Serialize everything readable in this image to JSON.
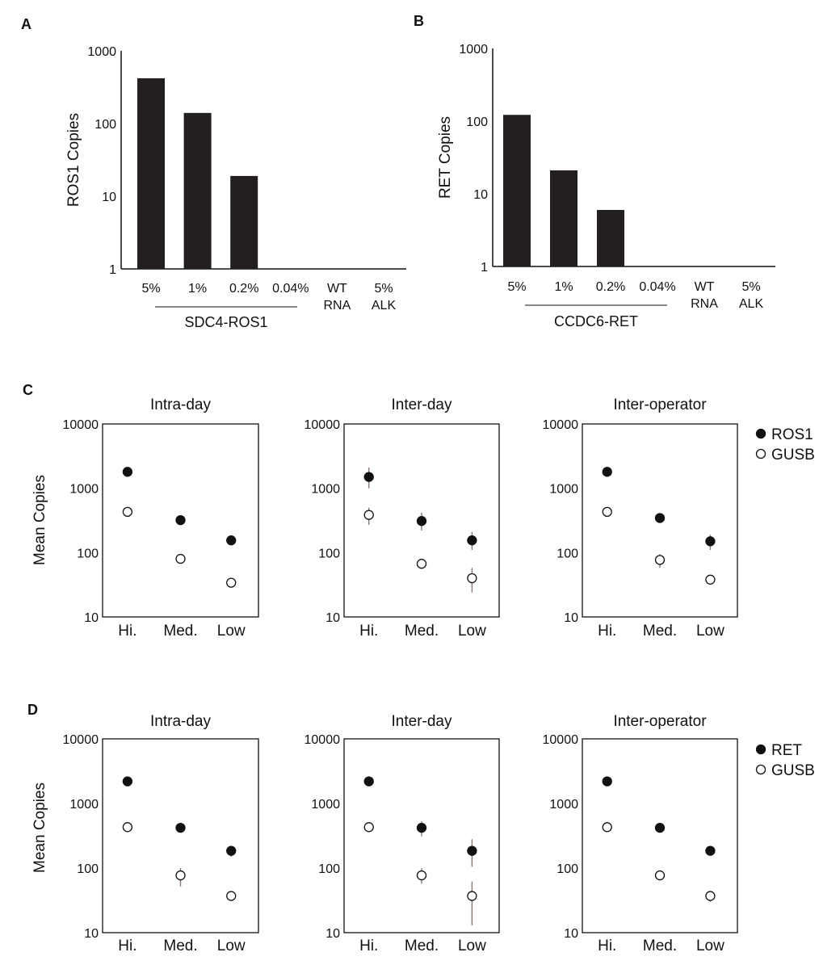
{
  "chart_data": [
    {
      "panel": "A",
      "type": "bar",
      "yscale": "log",
      "ylim": [
        1,
        1000
      ],
      "yticks": [
        "1",
        "10",
        "100",
        "1000"
      ],
      "ylabel": "ROS1 Copies",
      "categories": [
        [
          "5%"
        ],
        [
          "1%"
        ],
        [
          "0.2%"
        ],
        [
          "0.04%"
        ],
        [
          "WT",
          "RNA"
        ],
        [
          "5%",
          "ALK"
        ]
      ],
      "values": [
        420,
        140,
        19,
        0,
        0,
        0
      ],
      "group": {
        "label": "SDC4-ROS1",
        "span": [
          0,
          3
        ]
      },
      "color": "#231f20"
    },
    {
      "panel": "B",
      "type": "bar",
      "yscale": "log",
      "ylim": [
        1,
        1000
      ],
      "yticks": [
        "1",
        "10",
        "100",
        "1000"
      ],
      "ylabel": "RET Copies",
      "categories": [
        [
          "5%"
        ],
        [
          "1%"
        ],
        [
          "0.2%"
        ],
        [
          "0.04%"
        ],
        [
          "WT",
          "RNA"
        ],
        [
          "5%",
          "ALK"
        ]
      ],
      "values": [
        122,
        21,
        6,
        0,
        0,
        0
      ],
      "group": {
        "label": "CCDC6-RET",
        "span": [
          0,
          3
        ]
      },
      "color": "#231f20"
    },
    {
      "panel": "C",
      "type": "scatter",
      "yscale": "log",
      "ylim": [
        10,
        10000
      ],
      "yticks": [
        "10",
        "100",
        "1000",
        "10000"
      ],
      "ylabel": "Mean Copies",
      "categories": [
        "Hi.",
        "Med.",
        "Low"
      ],
      "legend": [
        {
          "name": "ROS1",
          "filled": true
        },
        {
          "name": "GUSB",
          "filled": false
        }
      ],
      "subplots": [
        {
          "title": "Intra-day",
          "series": [
            {
              "name": "ROS1",
              "values": [
                1800,
                320,
                155
              ],
              "err": [
                [
                  1800,
                  1800
                ],
                [
                  320,
                  320
                ],
                [
                  130,
                  170
                ]
              ]
            },
            {
              "name": "GUSB",
              "values": [
                430,
                80,
                34
              ],
              "err": [
                [
                  430,
                  430
                ],
                [
                  80,
                  80
                ],
                [
                  34,
                  34
                ]
              ]
            }
          ]
        },
        {
          "title": "Inter-day",
          "series": [
            {
              "name": "ROS1",
              "values": [
                1500,
                310,
                155
              ],
              "err": [
                [
                  1000,
                  2100
                ],
                [
                  220,
                  420
                ],
                [
                  110,
                  210
                ]
              ]
            },
            {
              "name": "GUSB",
              "values": [
                385,
                67,
                40
              ],
              "err": [
                [
                  270,
                  500
                ],
                [
                  67,
                  67
                ],
                [
                  24,
                  58
                ]
              ]
            }
          ]
        },
        {
          "title": "Inter-operator",
          "series": [
            {
              "name": "ROS1",
              "values": [
                1800,
                345,
                150
              ],
              "err": [
                [
                  1800,
                  1800
                ],
                [
                  345,
                  345
                ],
                [
                  110,
                  190
                ]
              ]
            },
            {
              "name": "GUSB",
              "values": [
                430,
                77,
                38
              ],
              "err": [
                [
                  430,
                  430
                ],
                [
                  58,
                  95
                ],
                [
                  38,
                  38
                ]
              ]
            }
          ]
        }
      ]
    },
    {
      "panel": "D",
      "type": "scatter",
      "yscale": "log",
      "ylim": [
        10,
        10000
      ],
      "yticks": [
        "10",
        "100",
        "1000",
        "10000"
      ],
      "ylabel": "Mean Copies",
      "categories": [
        "Hi.",
        "Med.",
        "Low"
      ],
      "legend": [
        {
          "name": "RET",
          "filled": true
        },
        {
          "name": "GUSB",
          "filled": false
        }
      ],
      "subplots": [
        {
          "title": "Intra-day",
          "series": [
            {
              "name": "RET",
              "values": [
                2200,
                420,
                185
              ],
              "err": [
                [
                  2200,
                  2200
                ],
                [
                  420,
                  420
                ],
                [
                  150,
                  220
                ]
              ]
            },
            {
              "name": "GUSB",
              "values": [
                430,
                77,
                37
              ],
              "err": [
                [
                  430,
                  430
                ],
                [
                  52,
                  100
                ],
                [
                  37,
                  37
                ]
              ]
            }
          ]
        },
        {
          "title": "Inter-day",
          "series": [
            {
              "name": "RET",
              "values": [
                2200,
                420,
                185
              ],
              "err": [
                [
                  2200,
                  2200
                ],
                [
                  310,
                  530
                ],
                [
                  105,
                  280
                ]
              ]
            },
            {
              "name": "GUSB",
              "values": [
                430,
                77,
                37
              ],
              "err": [
                [
                  430,
                  430
                ],
                [
                  57,
                  100
                ],
                [
                  13,
                  62
                ]
              ]
            }
          ]
        },
        {
          "title": "Inter-operator",
          "series": [
            {
              "name": "RET",
              "values": [
                2200,
                420,
                185
              ],
              "err": [
                [
                  2200,
                  2200
                ],
                [
                  420,
                  420
                ],
                [
                  185,
                  185
                ]
              ]
            },
            {
              "name": "GUSB",
              "values": [
                430,
                77,
                37
              ],
              "err": [
                [
                  430,
                  430
                ],
                [
                  77,
                  77
                ],
                [
                  30,
                  44
                ]
              ]
            }
          ]
        }
      ]
    }
  ]
}
